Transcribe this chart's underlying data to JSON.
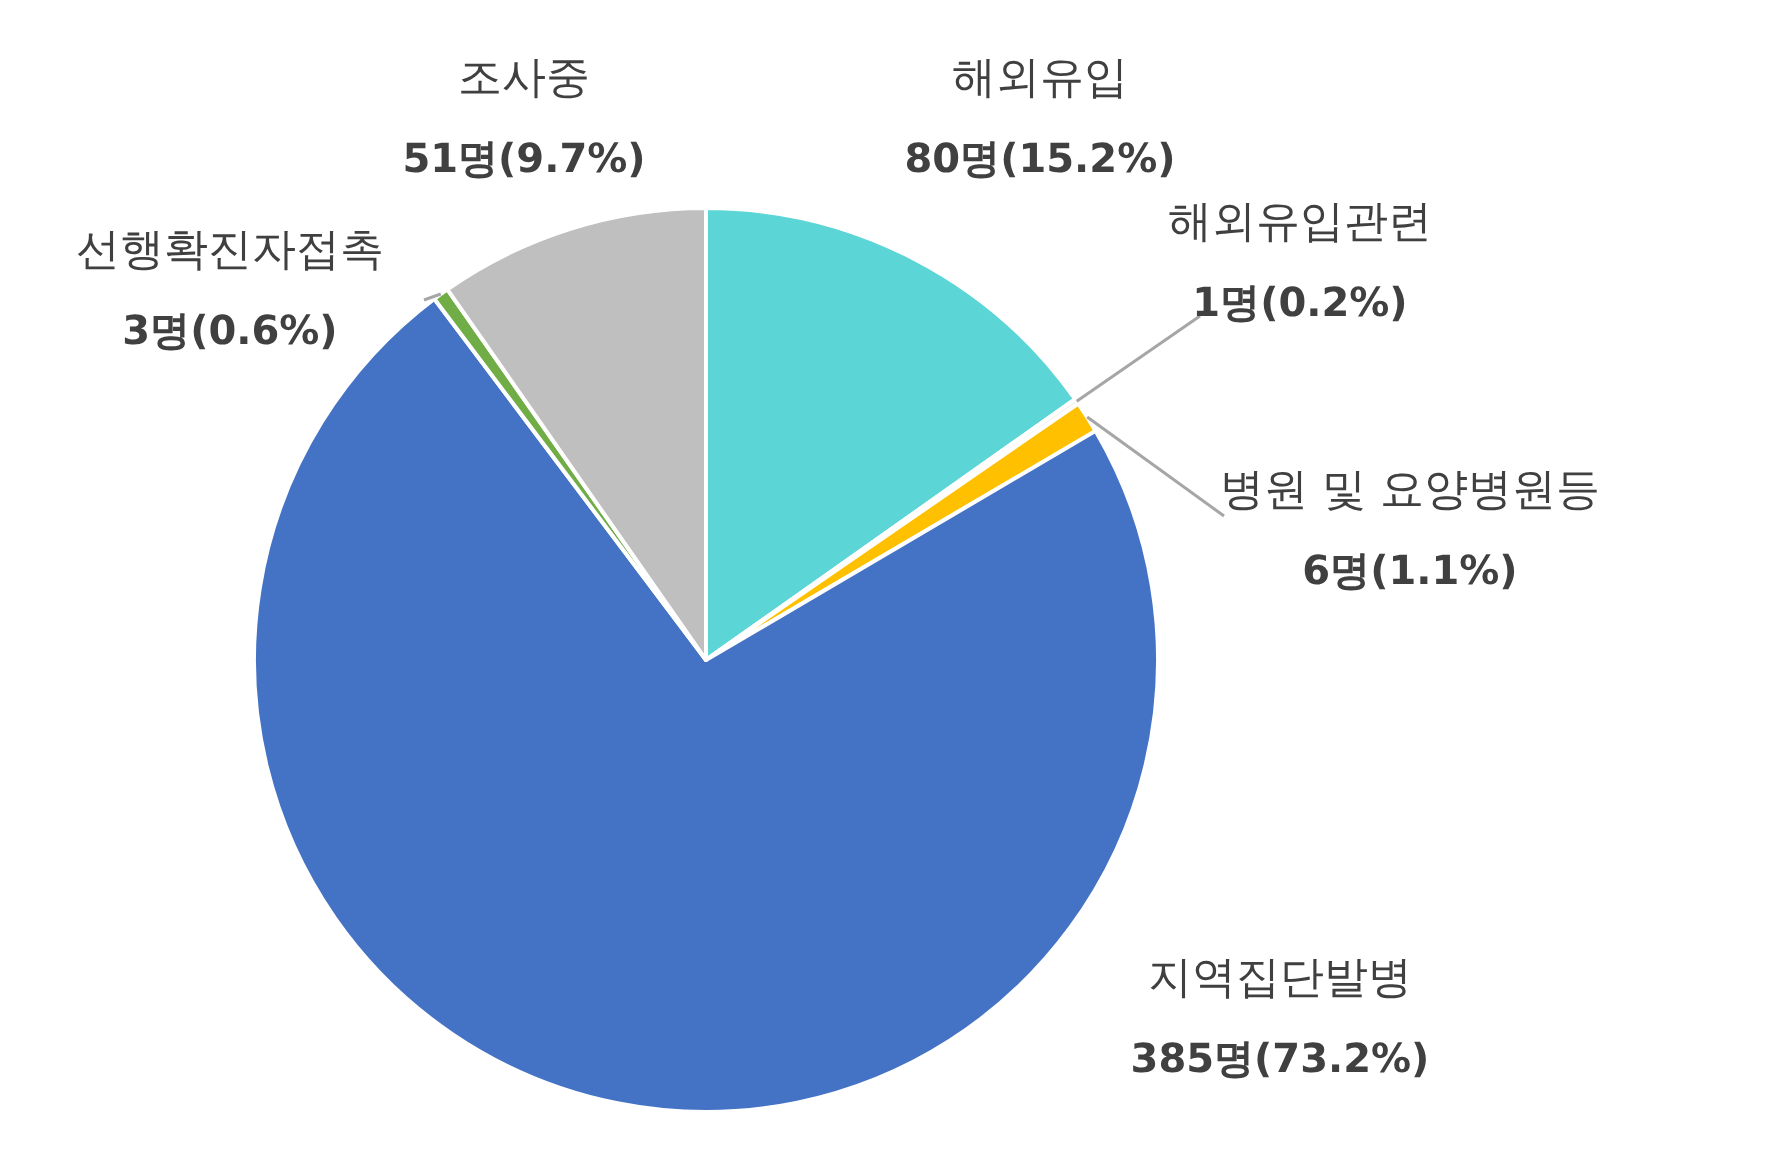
{
  "chart_data": {
    "type": "pie",
    "categories": [
      "해외유입",
      "해외유입관련",
      "병원 및 요양병원등",
      "지역집단발병",
      "선행확진자접촉",
      "조사중"
    ],
    "values": [
      80,
      1,
      6,
      385,
      3,
      51
    ],
    "colors": [
      "#5bd5d5",
      "#f2f2f2",
      "#ffc000",
      "#4472c4",
      "#70ad47",
      "#bfbfbf"
    ],
    "value_labels": [
      "80명(15.2%)",
      "1명(0.2%)",
      "6명(1.1%)",
      "385명(73.2%)",
      "3명(0.6%)",
      "51명(9.7%)"
    ],
    "legend": false
  }
}
